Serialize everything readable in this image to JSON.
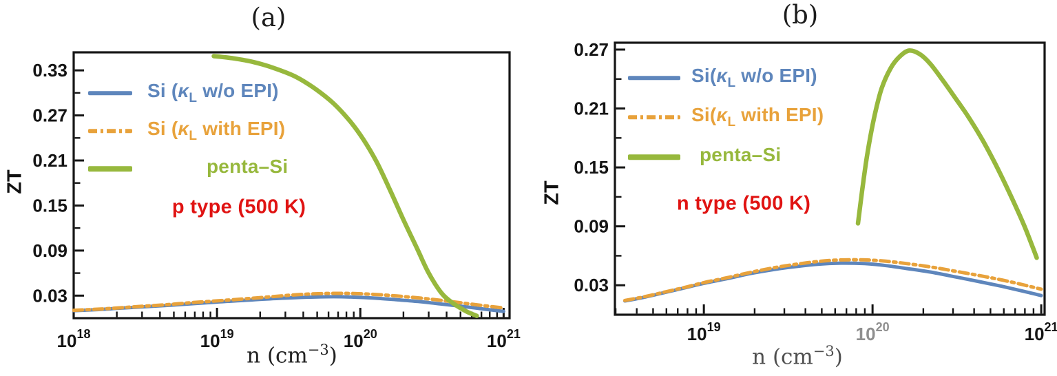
{
  "figure": {
    "background": "#ffffff"
  },
  "panels": [
    {
      "title": "(a)",
      "ylabel": "ZT",
      "xlabel": {
        "pre": "n (cm",
        "sup": "−3",
        "post": ")"
      },
      "xlabel_color": "#222222",
      "annotation": {
        "text": "p type (500 K)",
        "color": "#E01312"
      },
      "legend": [
        {
          "pre": "Si (",
          "kappa": "κ",
          "sub": "L",
          "post": " w/o EPI)"
        },
        {
          "pre": "Si (",
          "kappa": "κ",
          "sub": "L",
          "post": " with EPI)"
        },
        {
          "pre": "penta–Si",
          "kappa": "",
          "sub": "",
          "post": ""
        }
      ]
    },
    {
      "title": "(b)",
      "ylabel": "ZT",
      "xlabel": {
        "pre": "n (cm",
        "sup": "−3",
        "post": ")"
      },
      "xlabel_color": "#4f4f4f",
      "annotation": {
        "text": "n type (500 K)",
        "color": "#E01312"
      },
      "legend": [
        {
          "pre": "Si(",
          "kappa": "κ",
          "sub": "L",
          "post": " w/o EPI)"
        },
        {
          "pre": "Si(",
          "kappa": "κ",
          "sub": "L",
          "post": " with EPI)"
        },
        {
          "pre": "penta–Si",
          "kappa": "",
          "sub": "",
          "post": ""
        }
      ]
    }
  ],
  "chart_data": [
    {
      "type": "line",
      "panel": "a",
      "title": "(a)",
      "xlabel": "n (cm^-3)",
      "ylabel": "ZT",
      "xscale": "log",
      "grid": false,
      "legend_position": "upper-left-inside",
      "xlim": [
        1e+18,
        1.1e+21
      ],
      "ylim": [
        0,
        0.354
      ],
      "annotation": "p type (500 K)",
      "y_ticks": [
        {
          "value": 0.03,
          "label": "0.03"
        },
        {
          "value": 0.09,
          "label": "0.09"
        },
        {
          "value": 0.15,
          "label": "0.15"
        },
        {
          "value": 0.21,
          "label": "0.21"
        },
        {
          "value": 0.27,
          "label": "0.27"
        },
        {
          "value": 0.33,
          "label": "0.33"
        }
      ],
      "y_minor_ticks": [
        0.06,
        0.12,
        0.18,
        0.24,
        0.3
      ],
      "x_ticks": [
        {
          "value": 1e+18,
          "base": "10",
          "exp": "18",
          "color": "#141414"
        },
        {
          "value": 1e+19,
          "base": "10",
          "exp": "19",
          "color": "#141414"
        },
        {
          "value": 1e+20,
          "base": "10",
          "exp": "20",
          "color": "#141414"
        },
        {
          "value": 1e+21,
          "base": "10",
          "exp": "21",
          "color": "#141414"
        }
      ],
      "series": [
        {
          "name": "Si (κL w/o EPI)",
          "color": "#5E86BC",
          "line": "solid",
          "width": 5,
          "points": [
            [
              1e+18,
              0.01
            ],
            [
              1.5e+18,
              0.0115
            ],
            [
              2e+18,
              0.013
            ],
            [
              3e+18,
              0.015
            ],
            [
              4.5e+18,
              0.017
            ],
            [
              6.5e+18,
              0.019
            ],
            [
              1e+19,
              0.0215
            ],
            [
              1.5e+19,
              0.0235
            ],
            [
              2.2e+19,
              0.0255
            ],
            [
              3.2e+19,
              0.027
            ],
            [
              4.5e+19,
              0.028
            ],
            [
              6.5e+19,
              0.0285
            ],
            [
              9e+19,
              0.028
            ],
            [
              1.3e+20,
              0.0265
            ],
            [
              1.8e+20,
              0.0245
            ],
            [
              2.6e+20,
              0.022
            ],
            [
              3.6e+20,
              0.019
            ],
            [
              5e+20,
              0.016
            ],
            [
              7e+20,
              0.0125
            ],
            [
              1e+21,
              0.009
            ]
          ]
        },
        {
          "name": "Si (κL with EPI)",
          "color": "#E8A23B",
          "line": "dashdot",
          "width": 5,
          "points": [
            [
              1e+18,
              0.0105
            ],
            [
              1.5e+18,
              0.012
            ],
            [
              2e+18,
              0.0135
            ],
            [
              3e+18,
              0.0158
            ],
            [
              4.5e+18,
              0.018
            ],
            [
              6.5e+18,
              0.0205
            ],
            [
              1e+19,
              0.023
            ],
            [
              1.5e+19,
              0.0255
            ],
            [
              2.2e+19,
              0.028
            ],
            [
              3.2e+19,
              0.0305
            ],
            [
              4.5e+19,
              0.0322
            ],
            [
              6.5e+19,
              0.033
            ],
            [
              9e+19,
              0.0328
            ],
            [
              1.3e+20,
              0.0315
            ],
            [
              1.8e+20,
              0.0295
            ],
            [
              2.6e+20,
              0.0268
            ],
            [
              3.6e+20,
              0.0238
            ],
            [
              5e+20,
              0.0205
            ],
            [
              7e+20,
              0.017
            ],
            [
              1e+21,
              0.0135
            ]
          ]
        },
        {
          "name": "penta–Si",
          "color": "#97B83D",
          "line": "solid",
          "width": 6.5,
          "points": [
            [
              9.5e+18,
              0.349
            ],
            [
              1.3e+19,
              0.346
            ],
            [
              1.8e+19,
              0.341
            ],
            [
              2.5e+19,
              0.333
            ],
            [
              3.5e+19,
              0.322
            ],
            [
              4.8e+19,
              0.306
            ],
            [
              6.5e+19,
              0.286
            ],
            [
              8.5e+19,
              0.262
            ],
            [
              1.05e+20,
              0.238
            ],
            [
              1.3e+20,
              0.208
            ],
            [
              1.6e+20,
              0.172
            ],
            [
              2e+20,
              0.131
            ],
            [
              2.5e+20,
              0.092
            ],
            [
              3e+20,
              0.06
            ],
            [
              3.7e+20,
              0.033
            ],
            [
              4.5e+20,
              0.019
            ],
            [
              5.5e+20,
              0.009
            ],
            [
              6.5e+20,
              0.003
            ]
          ]
        }
      ]
    },
    {
      "type": "line",
      "panel": "b",
      "title": "(b)",
      "xlabel": "n (cm^-3)",
      "ylabel": "ZT",
      "xscale": "log",
      "grid": false,
      "legend_position": "upper-left-inside",
      "xlim": [
        2.97e+18,
        1.047e+21
      ],
      "ylim": [
        0,
        0.277
      ],
      "annotation": "n type (500 K)",
      "y_ticks": [
        {
          "value": 0.03,
          "label": "0.03"
        },
        {
          "value": 0.09,
          "label": "0.09"
        },
        {
          "value": 0.15,
          "label": "0.15"
        },
        {
          "value": 0.21,
          "label": "0.21"
        },
        {
          "value": 0.27,
          "label": "0.27"
        }
      ],
      "y_minor_ticks": [
        0.06,
        0.12,
        0.18,
        0.24
      ],
      "x_ticks": [
        {
          "value": 1e+19,
          "base": "10",
          "exp": "19",
          "color": "#141414"
        },
        {
          "value": 1e+20,
          "base": "10",
          "exp": "20",
          "color": "#8f8f8f"
        },
        {
          "value": 1e+21,
          "base": "10",
          "exp": "21",
          "color": "#141414"
        }
      ],
      "series": [
        {
          "name": "Si(κL w/o EPI)",
          "color": "#5E86BC",
          "line": "solid",
          "width": 5,
          "points": [
            [
              3.4e+18,
              0.014
            ],
            [
              4.5e+18,
              0.018
            ],
            [
              6e+18,
              0.023
            ],
            [
              8e+18,
              0.028
            ],
            [
              1e+19,
              0.032
            ],
            [
              1.4e+19,
              0.037
            ],
            [
              1.9e+19,
              0.042
            ],
            [
              2.6e+19,
              0.046
            ],
            [
              3.5e+19,
              0.049
            ],
            [
              4.8e+19,
              0.0515
            ],
            [
              6.5e+19,
              0.0525
            ],
            [
              9e+19,
              0.052
            ],
            [
              1.2e+20,
              0.05
            ],
            [
              1.6e+20,
              0.047
            ],
            [
              2.2e+20,
              0.0435
            ],
            [
              3e+20,
              0.039
            ],
            [
              4.2e+20,
              0.034
            ],
            [
              5.8e+20,
              0.029
            ],
            [
              7.8e+20,
              0.024
            ],
            [
              1e+21,
              0.0195
            ]
          ]
        },
        {
          "name": "Si(κL with EPI)",
          "color": "#E8A23B",
          "line": "dashdot",
          "width": 5,
          "points": [
            [
              3.4e+18,
              0.0145
            ],
            [
              4.5e+18,
              0.0185
            ],
            [
              6e+18,
              0.0235
            ],
            [
              8e+18,
              0.0285
            ],
            [
              1e+19,
              0.0327
            ],
            [
              1.4e+19,
              0.038
            ],
            [
              1.9e+19,
              0.0432
            ],
            [
              2.6e+19,
              0.0478
            ],
            [
              3.5e+19,
              0.0513
            ],
            [
              4.8e+19,
              0.0543
            ],
            [
              6.5e+19,
              0.0558
            ],
            [
              9e+19,
              0.0558
            ],
            [
              1.2e+20,
              0.0545
            ],
            [
              1.6e+20,
              0.052
            ],
            [
              2.2e+20,
              0.0487
            ],
            [
              3e+20,
              0.0447
            ],
            [
              4.2e+20,
              0.0402
            ],
            [
              5.8e+20,
              0.0355
            ],
            [
              7.8e+20,
              0.0305
            ],
            [
              1e+21,
              0.026
            ]
          ]
        },
        {
          "name": "penta–Si",
          "color": "#97B83D",
          "line": "solid",
          "width": 6.5,
          "points": [
            [
              8.2e+19,
              0.093
            ],
            [
              8.7e+19,
              0.128
            ],
            [
              9.3e+19,
              0.163
            ],
            [
              1.02e+20,
              0.2
            ],
            [
              1.13e+20,
              0.23
            ],
            [
              1.28e+20,
              0.251
            ],
            [
              1.45e+20,
              0.263
            ],
            [
              1.65e+20,
              0.269
            ],
            [
              1.9e+20,
              0.2655
            ],
            [
              2.2e+20,
              0.2555
            ],
            [
              2.6e+20,
              0.239
            ],
            [
              3.1e+20,
              0.2205
            ],
            [
              3.7e+20,
              0.2015
            ],
            [
              4.5e+20,
              0.1775
            ],
            [
              5.4e+20,
              0.152
            ],
            [
              6.5e+20,
              0.1235
            ],
            [
              7.8e+20,
              0.0935
            ],
            [
              8.8e+20,
              0.071
            ],
            [
              9.4e+20,
              0.058
            ]
          ]
        }
      ]
    }
  ]
}
